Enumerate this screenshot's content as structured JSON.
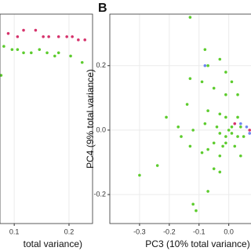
{
  "chart_data": [
    {
      "type": "scatter",
      "x_label": "total variance)",
      "xlim": [
        0.074,
        0.243
      ],
      "xticks": [
        0.1,
        0.2
      ],
      "ylim": [
        -0.29,
        0.36
      ],
      "grid": true,
      "series": [
        {
          "color": "#d6336c",
          "x": [
            0.089,
            0.106,
            0.117,
            0.139,
            0.153,
            0.163,
            0.181,
            0.196,
            0.206,
            0.217,
            0.229
          ],
          "values": [
            0.3,
            0.29,
            0.31,
            0.31,
            0.29,
            0.29,
            0.29,
            0.29,
            0.29,
            0.28,
            0.28
          ]
        },
        {
          "color": "#5dcc2e",
          "x": [
            0.081,
            0.096,
            0.106,
            0.117,
            0.131,
            0.146,
            0.16,
            0.174,
            0.181,
            0.203,
            0.224,
            0.076
          ],
          "values": [
            0.26,
            0.25,
            0.25,
            0.24,
            0.24,
            0.25,
            0.24,
            0.23,
            0.24,
            0.23,
            0.21,
            0.17
          ]
        }
      ]
    },
    {
      "type": "scatter",
      "panel_label": "B",
      "x_label": "PC3 (10% total variance)",
      "y_label": "PC4 (9% total variance)",
      "xlim": [
        -0.4,
        0.08
      ],
      "xticks": [
        -0.3,
        -0.2,
        -0.1,
        {
          "value": 0,
          "label": "0.0"
        }
      ],
      "ylim": [
        -0.29,
        0.36
      ],
      "yticks": [
        -0.2,
        {
          "value": 0,
          "label": "0.0"
        },
        0.2
      ],
      "grid": true,
      "series": [
        {
          "color": "#5dcc2e",
          "x": [
            -0.13,
            -0.08,
            -0.07,
            -0.13,
            -0.09,
            -0.03,
            -0.01,
            -0.05,
            -0.01,
            0.01,
            0.03,
            -0.07,
            -0.14,
            -0.21,
            -0.17,
            -0.12,
            -0.08,
            -0.04,
            -0.03,
            -0.01,
            0.0,
            0.01,
            0.03,
            0.04,
            0.05,
            -0.01,
            -0.02,
            -0.05,
            -0.07,
            -0.09,
            -0.13,
            -0.16,
            0.02,
            0.01,
            -0.01,
            -0.03,
            0.03,
            -0.05,
            -0.03,
            -0.07,
            -0.11,
            -0.12,
            -0.3,
            -0.24,
            -0.03,
            0.04
          ],
          "values": [
            0.35,
            0.25,
            0.2,
            0.16,
            0.15,
            0.22,
            0.18,
            0.13,
            0.11,
            0.15,
            0.11,
            0.06,
            0.08,
            0.04,
            0.01,
            0.0,
            0.02,
            0.01,
            -0.01,
            -0.02,
            0.0,
            -0.01,
            -0.02,
            0.01,
            -0.02,
            -0.04,
            -0.05,
            -0.04,
            -0.06,
            -0.07,
            -0.05,
            -0.02,
            -0.05,
            0.01,
            0.04,
            0.05,
            0.04,
            -0.12,
            -0.13,
            -0.19,
            -0.25,
            -0.23,
            -0.14,
            -0.11,
            -0.08,
            -0.08
          ]
        },
        {
          "color": "#6f86f0",
          "x": [
            -0.08,
            0.04,
            0.06,
            0.07
          ],
          "values": [
            0.2,
            0.02,
            0.01,
            -0.01
          ]
        },
        {
          "color": "#d6336c",
          "x": [
            0.02,
            0.07
          ],
          "values": [
            0.02,
            0.0
          ]
        }
      ]
    }
  ]
}
